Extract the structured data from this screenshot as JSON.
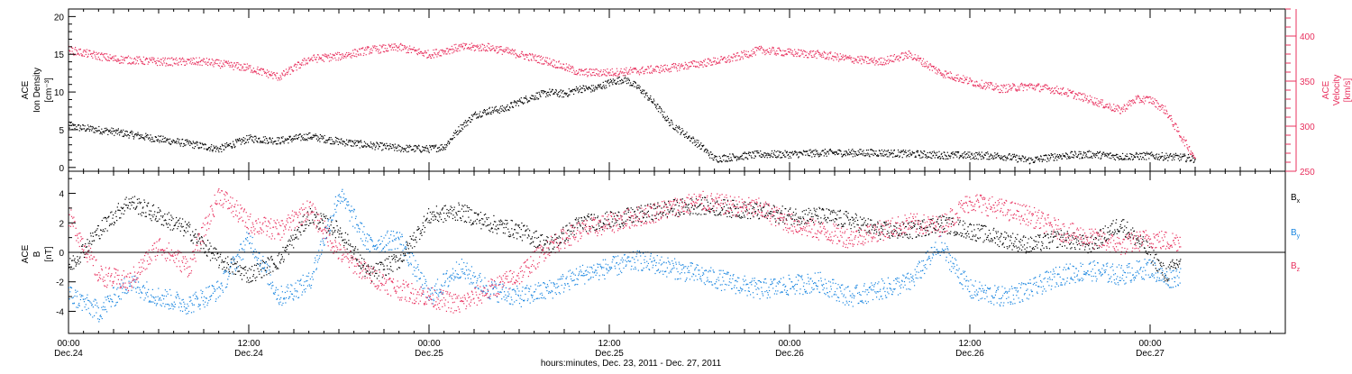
{
  "colors": {
    "black": "#000000",
    "red": "#e8305e",
    "blue": "#1a86e0"
  },
  "chart_data": [
    {
      "type": "scatter",
      "panel": "top",
      "ylabel_left": [
        "ACE",
        "Ion Density",
        "[cm⁻³]"
      ],
      "ylabel_right": [
        "ACE",
        "Velocity",
        "[km/s]"
      ],
      "ylim_left": [
        -0.5,
        21
      ],
      "yticks_left": [
        "0",
        "5",
        "10",
        "15",
        "20"
      ],
      "ylim_right": [
        250,
        430
      ],
      "yticks_right": [
        "250",
        "300",
        "350",
        "400"
      ],
      "series": [
        {
          "axis": "left",
          "color": "black",
          "points": [
            [
              0,
              5.5
            ],
            [
              3,
              4.8
            ],
            [
              6,
              3.8
            ],
            [
              8,
              3.2
            ],
            [
              10,
              2.5
            ],
            [
              12,
              3.9
            ],
            [
              14,
              3.6
            ],
            [
              16,
              4.2
            ],
            [
              18,
              3.5
            ],
            [
              20,
              3.0
            ],
            [
              22,
              2.6
            ],
            [
              24,
              2.5
            ],
            [
              25,
              2.8
            ],
            [
              26,
              5.2
            ],
            [
              27,
              7.0
            ],
            [
              28,
              7.6
            ],
            [
              29,
              7.8
            ],
            [
              30,
              8.8
            ],
            [
              31,
              9.5
            ],
            [
              32,
              10.0
            ],
            [
              33,
              9.8
            ],
            [
              34,
              10.5
            ],
            [
              35,
              10.5
            ],
            [
              36,
              11.3
            ],
            [
              37,
              11.8
            ],
            [
              38,
              10.5
            ],
            [
              39,
              8.5
            ],
            [
              40,
              6.0
            ],
            [
              41,
              4.5
            ],
            [
              42,
              3.0
            ],
            [
              43,
              1.2
            ],
            [
              46,
              1.8
            ],
            [
              48,
              1.8
            ],
            [
              50,
              2.0
            ],
            [
              54,
              2.0
            ],
            [
              58,
              1.7
            ],
            [
              62,
              1.6
            ],
            [
              64,
              1.0
            ],
            [
              66,
              1.6
            ],
            [
              68,
              1.8
            ],
            [
              70,
              1.5
            ],
            [
              72,
              1.6
            ],
            [
              74,
              1.4
            ],
            [
              75,
              1.2
            ]
          ]
        },
        {
          "axis": "right",
          "color": "red",
          "points": [
            [
              0,
              385
            ],
            [
              3,
              375
            ],
            [
              6,
              372
            ],
            [
              9,
              372
            ],
            [
              12,
              365
            ],
            [
              14,
              355
            ],
            [
              16,
              375
            ],
            [
              18,
              378
            ],
            [
              20,
              385
            ],
            [
              22,
              388
            ],
            [
              24,
              380
            ],
            [
              26,
              388
            ],
            [
              28,
              388
            ],
            [
              30,
              380
            ],
            [
              32,
              372
            ],
            [
              34,
              360
            ],
            [
              36,
              360
            ],
            [
              38,
              362
            ],
            [
              40,
              365
            ],
            [
              42,
              370
            ],
            [
              44,
              375
            ],
            [
              46,
              385
            ],
            [
              48,
              382
            ],
            [
              50,
              380
            ],
            [
              52,
              375
            ],
            [
              54,
              372
            ],
            [
              56,
              380
            ],
            [
              58,
              360
            ],
            [
              60,
              350
            ],
            [
              62,
              342
            ],
            [
              64,
              345
            ],
            [
              66,
              340
            ],
            [
              68,
              330
            ],
            [
              70,
              318
            ],
            [
              71,
              330
            ],
            [
              72,
              330
            ],
            [
              73,
              318
            ],
            [
              74,
              290
            ],
            [
              75,
              265
            ]
          ]
        }
      ]
    },
    {
      "type": "scatter",
      "panel": "bottom",
      "ylabel": [
        "ACE",
        "B",
        "[nT]"
      ],
      "ylim": [
        -5.5,
        5.5
      ],
      "yticks": [
        "-4",
        "-2",
        "0",
        "2",
        "4"
      ],
      "legend": [
        "Bx",
        "By",
        "Bz"
      ],
      "legend_placement": "right",
      "x_ticks_time": [
        "00:00",
        "12:00",
        "00:00",
        "12:00",
        "00:00",
        "12:00",
        "00:00"
      ],
      "x_ticks_date": [
        "Dec.24",
        "Dec.24",
        "Dec.25",
        "Dec.25",
        "Dec.26",
        "Dec.26",
        "Dec.27"
      ],
      "xlabel": "hours:minutes, Dec. 23, 2011 - Dec. 27, 2011",
      "xlim_hours": [
        0,
        81
      ],
      "series": [
        {
          "name": "Bx",
          "color": "black",
          "points": [
            [
              0,
              -1
            ],
            [
              2,
              1.5
            ],
            [
              4,
              3.5
            ],
            [
              6,
              2.5
            ],
            [
              8,
              1.5
            ],
            [
              10,
              -0.5
            ],
            [
              12,
              -1.5
            ],
            [
              14,
              -0.5
            ],
            [
              16,
              2.5
            ],
            [
              18,
              1.5
            ],
            [
              20,
              -1.5
            ],
            [
              22,
              -0.5
            ],
            [
              24,
              2.5
            ],
            [
              26,
              2.8
            ],
            [
              28,
              2.0
            ],
            [
              30,
              1.5
            ],
            [
              32,
              0.5
            ],
            [
              34,
              2.0
            ],
            [
              36,
              2.2
            ],
            [
              38,
              2.6
            ],
            [
              40,
              3.0
            ],
            [
              42,
              3.2
            ],
            [
              44,
              3.0
            ],
            [
              46,
              2.8
            ],
            [
              48,
              2.5
            ],
            [
              50,
              2.5
            ],
            [
              52,
              2.2
            ],
            [
              54,
              1.5
            ],
            [
              56,
              1.5
            ],
            [
              58,
              2.0
            ],
            [
              60,
              1.5
            ],
            [
              62,
              1.0
            ],
            [
              64,
              0.5
            ],
            [
              66,
              1.0
            ],
            [
              68,
              0.5
            ],
            [
              70,
              2.0
            ],
            [
              72,
              0
            ],
            [
              73,
              -1.5
            ],
            [
              74,
              -0.5
            ]
          ]
        },
        {
          "name": "By",
          "color": "blue",
          "points": [
            [
              0,
              -2.8
            ],
            [
              2,
              -4.0
            ],
            [
              4,
              -2.0
            ],
            [
              6,
              -3.0
            ],
            [
              8,
              -3.5
            ],
            [
              10,
              -2.5
            ],
            [
              12,
              1.0
            ],
            [
              14,
              -3.0
            ],
            [
              16,
              -2.0
            ],
            [
              18,
              4.0
            ],
            [
              20,
              0.5
            ],
            [
              22,
              1.0
            ],
            [
              24,
              -3.0
            ],
            [
              26,
              -1.0
            ],
            [
              28,
              -2.5
            ],
            [
              30,
              -3.0
            ],
            [
              32,
              -2.5
            ],
            [
              34,
              -1.5
            ],
            [
              36,
              -1.0
            ],
            [
              38,
              -0.5
            ],
            [
              40,
              -1.0
            ],
            [
              42,
              -1.5
            ],
            [
              44,
              -2.0
            ],
            [
              46,
              -2.5
            ],
            [
              48,
              -2.2
            ],
            [
              50,
              -2.0
            ],
            [
              52,
              -3.0
            ],
            [
              54,
              -2.5
            ],
            [
              56,
              -2.0
            ],
            [
              58,
              0.5
            ],
            [
              60,
              -2.5
            ],
            [
              62,
              -3.0
            ],
            [
              64,
              -2.5
            ],
            [
              66,
              -1.5
            ],
            [
              68,
              -1.2
            ],
            [
              70,
              -1.5
            ],
            [
              72,
              -1.0
            ],
            [
              73,
              -1.8
            ],
            [
              74,
              -1.5
            ]
          ]
        },
        {
          "name": "Bz",
          "color": "red",
          "points": [
            [
              0,
              2.5
            ],
            [
              2,
              -1.5
            ],
            [
              4,
              -2.0
            ],
            [
              6,
              0.5
            ],
            [
              8,
              -1.0
            ],
            [
              10,
              4.0
            ],
            [
              12,
              2.0
            ],
            [
              14,
              1.5
            ],
            [
              16,
              3.0
            ],
            [
              18,
              0.0
            ],
            [
              20,
              -1.5
            ],
            [
              22,
              -2.5
            ],
            [
              24,
              -3.0
            ],
            [
              26,
              -3.5
            ],
            [
              28,
              -2.5
            ],
            [
              30,
              -1.5
            ],
            [
              32,
              0.5
            ],
            [
              34,
              1.5
            ],
            [
              36,
              2.0
            ],
            [
              38,
              2.5
            ],
            [
              40,
              3.0
            ],
            [
              42,
              3.5
            ],
            [
              44,
              3.2
            ],
            [
              46,
              3.0
            ],
            [
              48,
              2.0
            ],
            [
              50,
              1.5
            ],
            [
              52,
              1.0
            ],
            [
              54,
              1.5
            ],
            [
              56,
              2.0
            ],
            [
              58,
              1.8
            ],
            [
              60,
              3.5
            ],
            [
              62,
              3.0
            ],
            [
              64,
              2.5
            ],
            [
              66,
              1.5
            ],
            [
              68,
              1.0
            ],
            [
              70,
              0.5
            ],
            [
              72,
              1.0
            ],
            [
              73,
              0.8
            ],
            [
              74,
              0.8
            ]
          ]
        }
      ]
    }
  ]
}
